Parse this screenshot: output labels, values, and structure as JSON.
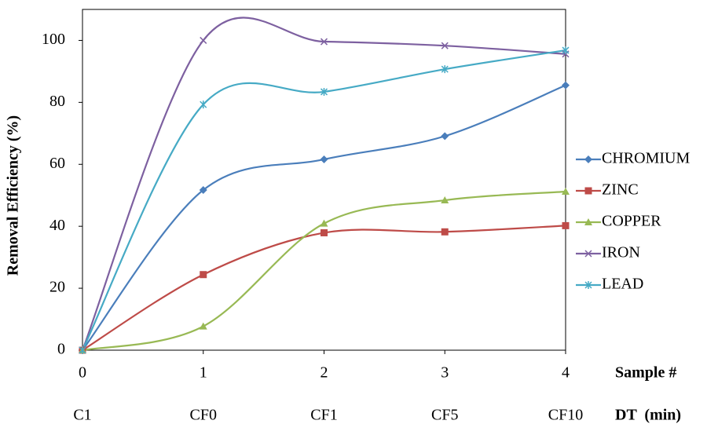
{
  "chart_data": {
    "type": "line",
    "smooth": true,
    "y_label": "Removal Efficiency (%)",
    "x_label": "Sample #",
    "category_label": "DT  (min)",
    "x": [
      0,
      1,
      2,
      3,
      4
    ],
    "categories": [
      "C1",
      "CF0",
      "CF1",
      "CF5",
      "CF10"
    ],
    "xlim": [
      0,
      4
    ],
    "xticks": [
      0,
      1,
      2,
      3,
      4
    ],
    "ylim": [
      0,
      110
    ],
    "yticks": [
      0,
      20,
      40,
      60,
      80,
      100
    ],
    "grid": false,
    "legend": "right",
    "series": [
      {
        "name": "CHROMIUM",
        "color": "#4a7ebb",
        "marker": "diamond",
        "values": [
          0,
          51.7,
          61.6,
          69.1,
          85.5
        ]
      },
      {
        "name": "ZINC",
        "color": "#be4b48",
        "marker": "square",
        "values": [
          0,
          24.4,
          37.9,
          38.2,
          40.2
        ]
      },
      {
        "name": "COPPER",
        "color": "#98b954",
        "marker": "triangle",
        "values": [
          0,
          7.7,
          40.9,
          48.4,
          51.2
        ]
      },
      {
        "name": "IRON",
        "color": "#7d60a0",
        "marker": "x",
        "values": [
          0,
          100,
          99.6,
          98.3,
          95.6
        ]
      },
      {
        "name": "LEAD",
        "color": "#46aac5",
        "marker": "asterisk",
        "values": [
          0,
          79.3,
          83.4,
          90.7,
          96.8
        ]
      }
    ]
  }
}
